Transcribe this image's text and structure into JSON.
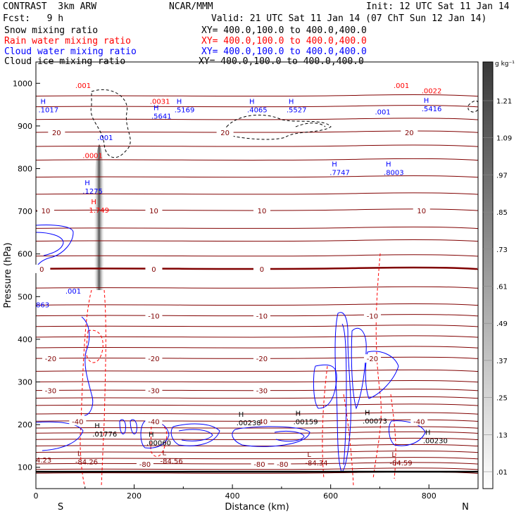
{
  "header": {
    "model": "CONTRAST  3km ARW",
    "org": "NCAR/MMM",
    "init": "Init: 12 UTC Sat 11 Jan 14",
    "fcst": "Fcst:   9 h",
    "valid": "Valid: 21 UTC Sat 11 Jan 14 (07 ChT Sun 12 Jan 14)",
    "fields": [
      {
        "name": "Snow mixing ratio",
        "xy": "XY= 400.0,100.0 to 400.0,400.0",
        "color": "#000000"
      },
      {
        "name": "Rain water mixing ratio",
        "xy": "XY= 400.0,100.0 to 400.0,400.0",
        "color": "#ff0000"
      },
      {
        "name": "Cloud water mixing ratio",
        "xy": "XY= 400.0,100.0 to 400.0,400.0",
        "color": "#0000ff"
      },
      {
        "name": "Cloud ice mixing ratio",
        "xy": "XY= 400.0,100.0 to 400.0,400.0",
        "color": "#000000"
      }
    ]
  },
  "chart_data": {
    "type": "contour-cross-section",
    "xlabel": "Distance (km)",
    "ylabel": "Pressure (hPa)",
    "xlim": [
      0,
      900
    ],
    "ylim": [
      1050,
      50
    ],
    "x_ticks": [
      0,
      200,
      400,
      600,
      800
    ],
    "y_ticks": [
      100,
      200,
      300,
      400,
      500,
      600,
      700,
      800,
      900,
      1000
    ],
    "x_end_labels": {
      "left": "S",
      "right": "N"
    },
    "colorbar": {
      "unit": "g kg⁻¹",
      "ticks": [
        "1.21",
        "1.09",
        ".97",
        ".85",
        ".73",
        ".61",
        ".49",
        ".37",
        ".25",
        ".13",
        ".01"
      ]
    },
    "temperature_isotherms": [
      {
        "value": -80,
        "p": 108,
        "labels": [
          {
            "x": 222,
            "text": "-80"
          },
          {
            "x": 455,
            "text": "-80"
          },
          {
            "x": 502,
            "text": "-80"
          }
        ]
      },
      {
        "value": -40,
        "p": 208,
        "labels": [
          {
            "x": 85,
            "text": "-40"
          },
          {
            "x": 240,
            "text": "-40"
          },
          {
            "x": 460,
            "text": "-40"
          },
          {
            "x": 780,
            "text": "-40"
          }
        ]
      },
      {
        "value": -30,
        "p": 280,
        "labels": [
          {
            "x": 30,
            "text": "-30"
          },
          {
            "x": 240,
            "text": "-30"
          },
          {
            "x": 460,
            "text": "-30"
          }
        ]
      },
      {
        "value": -20,
        "p": 355,
        "labels": [
          {
            "x": 30,
            "text": "-20"
          },
          {
            "x": 240,
            "text": "-20"
          },
          {
            "x": 460,
            "text": "-20"
          },
          {
            "x": 685,
            "text": "-20"
          }
        ]
      },
      {
        "value": -10,
        "p": 455,
        "labels": [
          {
            "x": 240,
            "text": "-10"
          },
          {
            "x": 460,
            "text": "-10"
          },
          {
            "x": 685,
            "text": "-10"
          }
        ]
      },
      {
        "value": 0,
        "p": 565,
        "labels": [
          {
            "x": 12,
            "text": "0"
          },
          {
            "x": 240,
            "text": "0"
          },
          {
            "x": 460,
            "text": "0"
          }
        ]
      },
      {
        "value": 10,
        "p": 702,
        "labels": [
          {
            "x": 20,
            "text": "10"
          },
          {
            "x": 240,
            "text": "10"
          },
          {
            "x": 460,
            "text": "10"
          },
          {
            "x": 785,
            "text": "10"
          }
        ]
      },
      {
        "value": 20,
        "p": 885,
        "labels": [
          {
            "x": 42,
            "text": "20"
          },
          {
            "x": 385,
            "text": "20"
          },
          {
            "x": 760,
            "text": "20"
          }
        ]
      }
    ],
    "extremes": [
      {
        "kind": "L",
        "x": 80,
        "p": 120,
        "text": "-84.26",
        "color": "#800000"
      },
      {
        "kind": "L",
        "x": 253,
        "p": 122,
        "text": "-84.56",
        "color": "#800000"
      },
      {
        "kind": "L",
        "x": 548,
        "p": 118,
        "text": "-84.34",
        "color": "#800000"
      },
      {
        "kind": "L",
        "x": 720,
        "p": 118,
        "text": "-84.59",
        "color": "#800000"
      },
      {
        "kind": "",
        "x": 0,
        "p": 124,
        "text": "4.23",
        "color": "#800000"
      },
      {
        "kind": "H",
        "x": 225,
        "p": 165,
        "text": ".00060",
        "color": "#000000"
      },
      {
        "kind": "H",
        "x": 115,
        "p": 185,
        "text": ".01776",
        "color": "#000000"
      },
      {
        "kind": "H",
        "x": 408,
        "p": 212,
        "text": ".00238",
        "color": "#000000"
      },
      {
        "kind": "H",
        "x": 524,
        "p": 214,
        "text": ".00159",
        "color": "#000000"
      },
      {
        "kind": "H",
        "x": 665,
        "p": 216,
        "text": ".00073",
        "color": "#000000"
      },
      {
        "kind": "H",
        "x": 788,
        "p": 170,
        "text": ".00230",
        "color": "#000000"
      },
      {
        "kind": "H",
        "x": 108,
        "p": 710,
        "text": "1.749",
        "color": "#ff0000"
      },
      {
        "kind": "H",
        "x": 95,
        "p": 755,
        "text": ".1275",
        "color": "#0000ff"
      },
      {
        "kind": "",
        "x": 95,
        "p": 838,
        "text": ".0001",
        "color": "#ff0000"
      },
      {
        "kind": "",
        "x": 125,
        "p": 880,
        "text": ".001",
        "color": "#0000ff"
      },
      {
        "kind": "H",
        "x": 5,
        "p": 945,
        "text": ".1017",
        "color": "#0000ff"
      },
      {
        "kind": "H",
        "x": 235,
        "p": 930,
        "text": ".5641",
        "color": "#0000ff"
      },
      {
        "kind": "",
        "x": 232,
        "p": 965,
        "text": ".0031",
        "color": "#ff0000"
      },
      {
        "kind": "H",
        "x": 282,
        "p": 945,
        "text": ".5169",
        "color": "#0000ff"
      },
      {
        "kind": "H",
        "x": 430,
        "p": 945,
        "text": ".4065",
        "color": "#0000ff"
      },
      {
        "kind": "H",
        "x": 510,
        "p": 945,
        "text": ".5527",
        "color": "#0000ff"
      },
      {
        "kind": "H",
        "x": 598,
        "p": 798,
        "text": ".7747",
        "color": "#0000ff"
      },
      {
        "kind": "H",
        "x": 708,
        "p": 798,
        "text": ".8003",
        "color": "#0000ff"
      },
      {
        "kind": "H",
        "x": 785,
        "p": 948,
        "text": ".5416",
        "color": "#0000ff"
      },
      {
        "kind": "",
        "x": 785,
        "p": 990,
        "text": ".0022",
        "color": "#ff0000"
      },
      {
        "kind": "",
        "x": 80,
        "p": 1002,
        "text": ".001",
        "color": "#ff0000"
      },
      {
        "kind": "",
        "x": 728,
        "p": 1002,
        "text": ".001",
        "color": "#ff0000"
      },
      {
        "kind": "",
        "x": 0,
        "p": 488,
        "text": "863",
        "color": "#0000ff"
      },
      {
        "kind": "",
        "x": 60,
        "p": 520,
        "text": ".001",
        "color": "#0000ff"
      },
      {
        "kind": "",
        "x": 690,
        "p": 940,
        "text": ".001",
        "color": "#0000ff"
      }
    ]
  }
}
